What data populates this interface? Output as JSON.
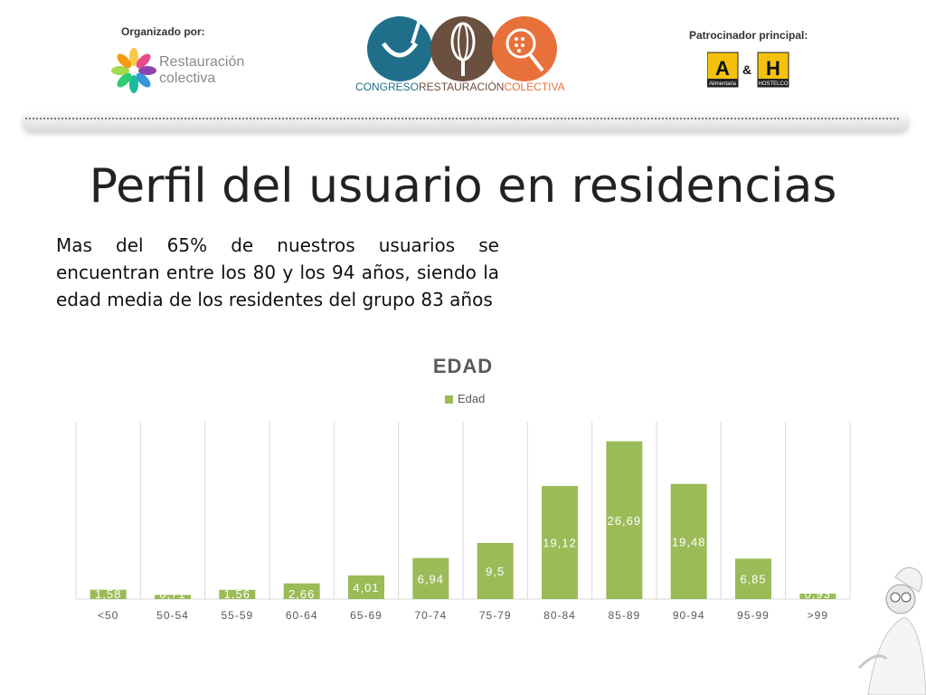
{
  "header": {
    "organizer_label": "Organizado por:",
    "organizer_name_line1": "Restauración",
    "organizer_name_line2": "colectiva",
    "congress_name_part1": "CONGRESO",
    "congress_name_part2": "RESTAURACIÓN",
    "congress_name_part3": "COLECTIVA",
    "sponsor_label": "Patrocinador principal:",
    "sponsor_left_letter": "A",
    "sponsor_left_caption": "Alimentaria",
    "sponsor_amp": "&",
    "sponsor_right_letter": "H",
    "sponsor_right_caption": "HOSTELCO"
  },
  "page": {
    "title": "Perfil del usuario en residencias",
    "description": "Mas del 65% de nuestros usuarios se encuentran entre los 80 y los 94 años, siendo la edad media de los residentes del grupo 83 años"
  },
  "chart_data": {
    "type": "bar",
    "title": "EDAD",
    "categories": [
      "<50",
      "50-54",
      "55-59",
      "60-64",
      "65-69",
      "70-74",
      "75-79",
      "80-84",
      "85-89",
      "90-94",
      "95-99",
      ">99"
    ],
    "series": [
      {
        "name": "Edad",
        "values": [
          1.58,
          0.71,
          1.56,
          2.66,
          4.01,
          6.94,
          9.5,
          19.12,
          26.69,
          19.48,
          6.85,
          0.93
        ],
        "labels": [
          "1,58",
          "0,71",
          "1,56",
          "2,66",
          "4,01",
          "6,94",
          "9,5",
          "19,12",
          "26,69",
          "19,48",
          "6,85",
          "0,93"
        ]
      }
    ],
    "ylim": [
      0,
      30
    ],
    "xlabel": "",
    "ylabel": "",
    "legend_position": "top",
    "grid": "vertical",
    "bar_color": "#9bbb59",
    "label_color": "#ffffff",
    "tick_color": "#595959"
  }
}
